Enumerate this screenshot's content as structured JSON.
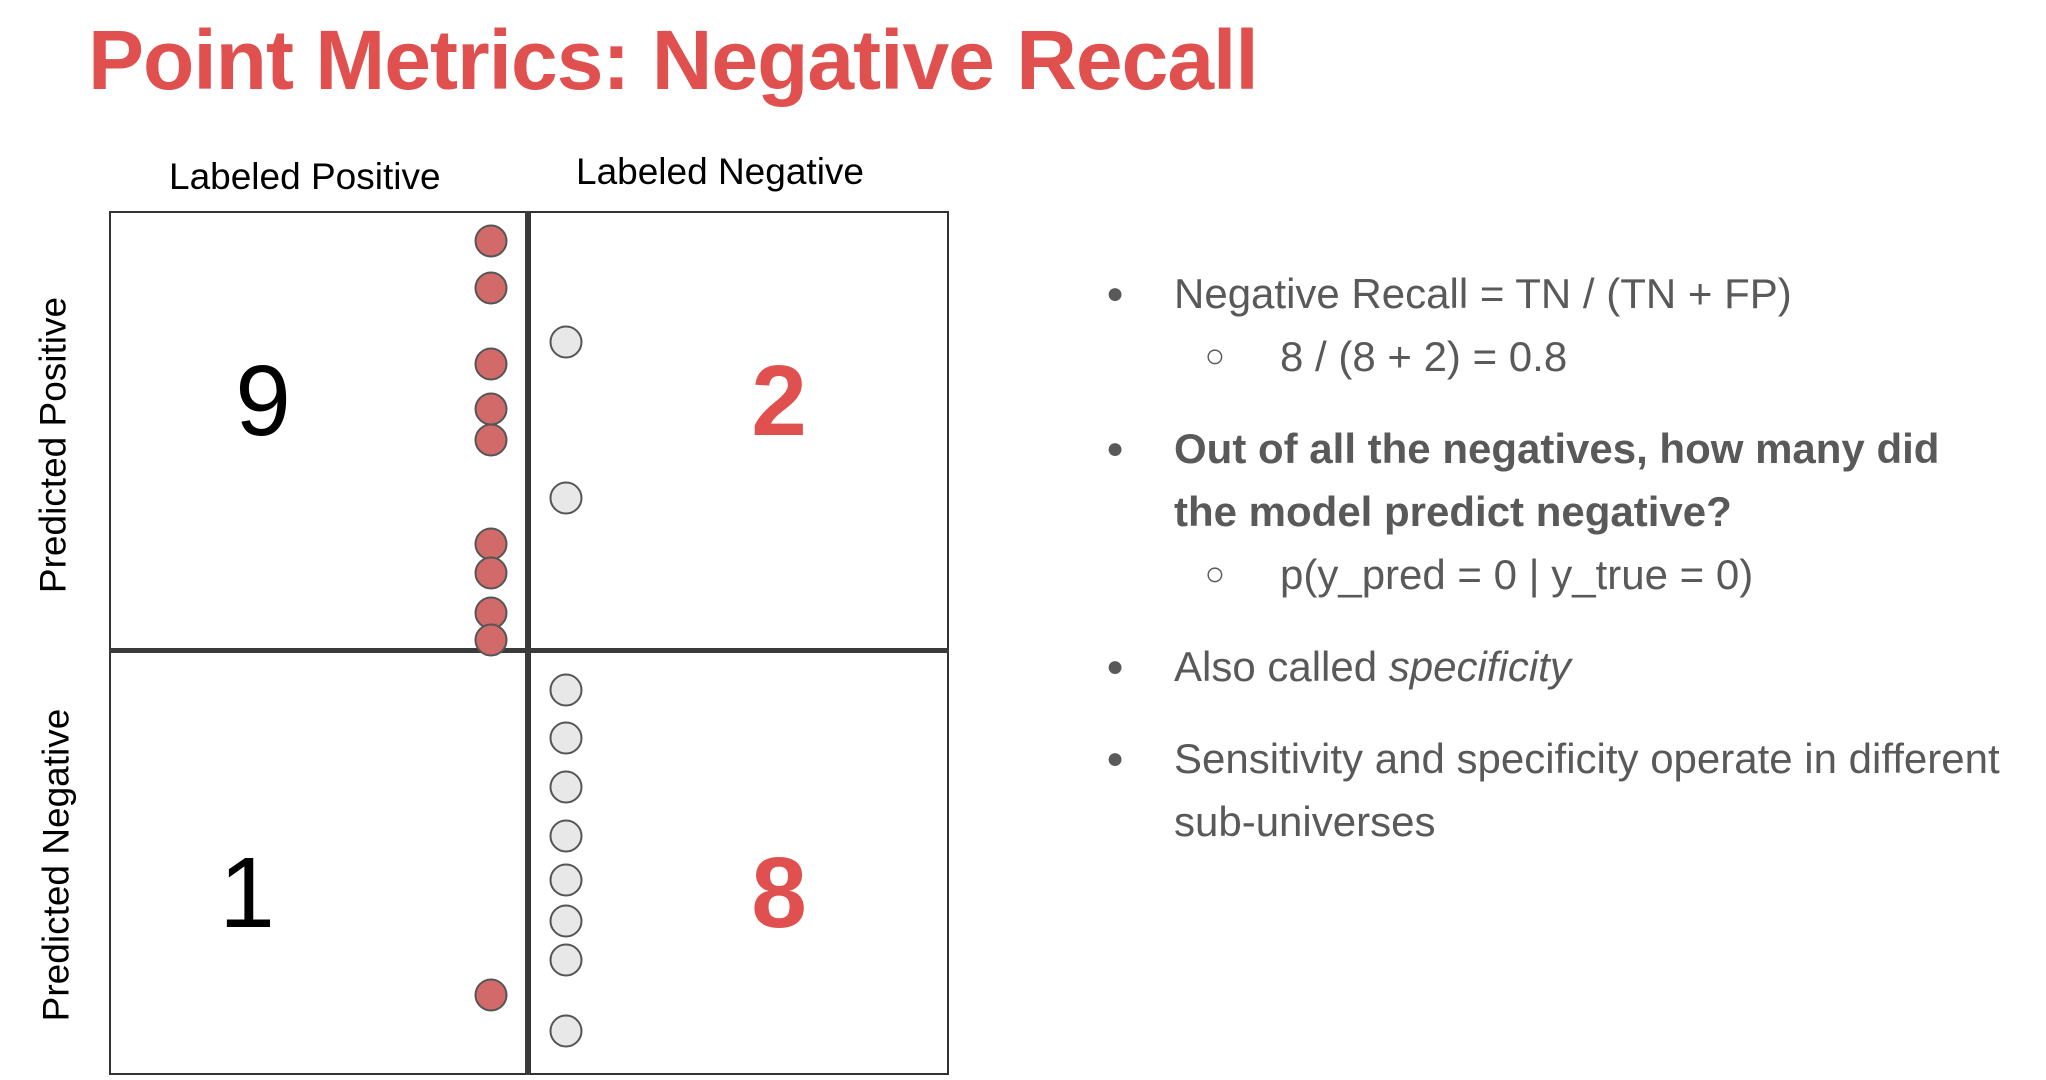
{
  "title": "Point Metrics: Negative Recall",
  "colors": {
    "accent": "#e0504e",
    "positive_dot": "#d36a6a",
    "negative_dot": "#e8e8e8",
    "text_dark": "#000000",
    "text_gray": "#595959",
    "grid_line": "#333333"
  },
  "matrix": {
    "col_labels": [
      "Labeled Positive",
      "Labeled Negative"
    ],
    "row_labels": [
      "Predicted Positive",
      "Predicted Negative"
    ],
    "cells": {
      "true_positive": {
        "count": "9",
        "highlight": false
      },
      "false_positive": {
        "count": "2",
        "highlight": true
      },
      "false_negative": {
        "count": "1",
        "highlight": false
      },
      "true_negative": {
        "count": "8",
        "highlight": true
      }
    },
    "dot_counts": {
      "true_positive": 9,
      "false_positive": 2,
      "false_negative": 1,
      "true_negative": 8
    }
  },
  "bullets": [
    {
      "text": "Negative Recall = TN / (TN + FP)",
      "sub": "8 / (8 + 2) = 0.8"
    },
    {
      "text": "Out of all the negatives, how many did the model predict negative?",
      "sub": "p(y_pred = 0 | y_true = 0)"
    },
    {
      "text_prefix": "Also called ",
      "text_emphasis": "specificity"
    },
    {
      "text": "Sensitivity and specificity operate in different sub-universes"
    }
  ],
  "bullet_glyphs": {
    "main": "●",
    "sub": "○"
  }
}
